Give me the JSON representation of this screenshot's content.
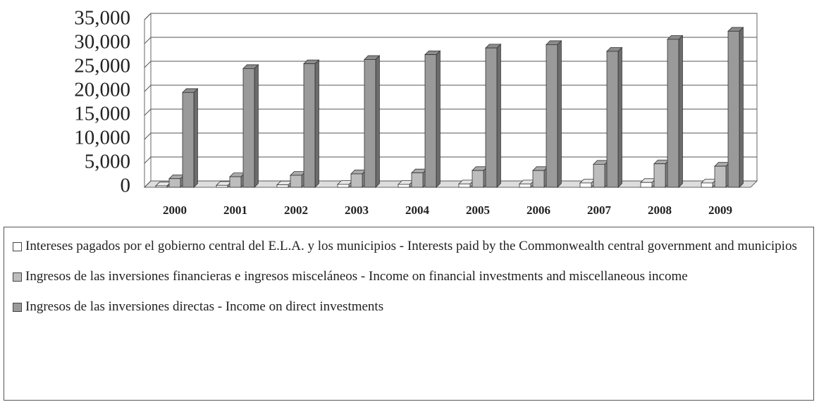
{
  "chart_data": {
    "type": "bar3d",
    "categories": [
      "2000",
      "2001",
      "2002",
      "2003",
      "2004",
      "2005",
      "2006",
      "2007",
      "2008",
      "2009"
    ],
    "series": [
      {
        "name": "Intereses pagados por el gobierno central del E.L.A. y los municipios - Interests paid by the Commonwealth central government and municipios",
        "color": "#ffffff",
        "values": [
          300,
          400,
          500,
          600,
          600,
          700,
          700,
          900,
          1000,
          900
        ]
      },
      {
        "name": "Ingresos de las inversiones financieras e ingresos misceláneos - Income on financial investments and miscellaneous income",
        "color": "#bdbdbd",
        "values": [
          1800,
          2200,
          2500,
          2800,
          3000,
          3500,
          3500,
          4800,
          4900,
          4400
        ]
      },
      {
        "name": "Ingresos de las inversiones directas - Income on direct investments",
        "color": "#9a9a9a",
        "values": [
          19800,
          24800,
          25800,
          26700,
          27700,
          29100,
          29800,
          28400,
          30900,
          32600
        ]
      }
    ],
    "ylim": [
      0,
      35000
    ],
    "yticks": [
      0,
      {
        "value": 5000,
        "label": "5,000"
      },
      {
        "value": 10000,
        "label": "10,000"
      },
      {
        "value": 15000,
        "label": "15,000"
      },
      {
        "value": 20000,
        "label": "20,000"
      },
      {
        "value": 25000,
        "label": "25,000"
      },
      {
        "value": 30000,
        "label": "30,000"
      },
      {
        "value": 35000,
        "label": "35,000"
      }
    ],
    "grid": true
  }
}
